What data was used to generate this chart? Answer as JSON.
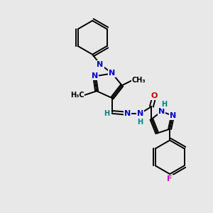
{
  "bg_color": "#e8e8e8",
  "bond_color": "#000000",
  "atom_colors": {
    "N": "#0000cc",
    "O": "#cc0000",
    "F": "#cc00cc",
    "H": "#008080",
    "C": "#000000"
  }
}
